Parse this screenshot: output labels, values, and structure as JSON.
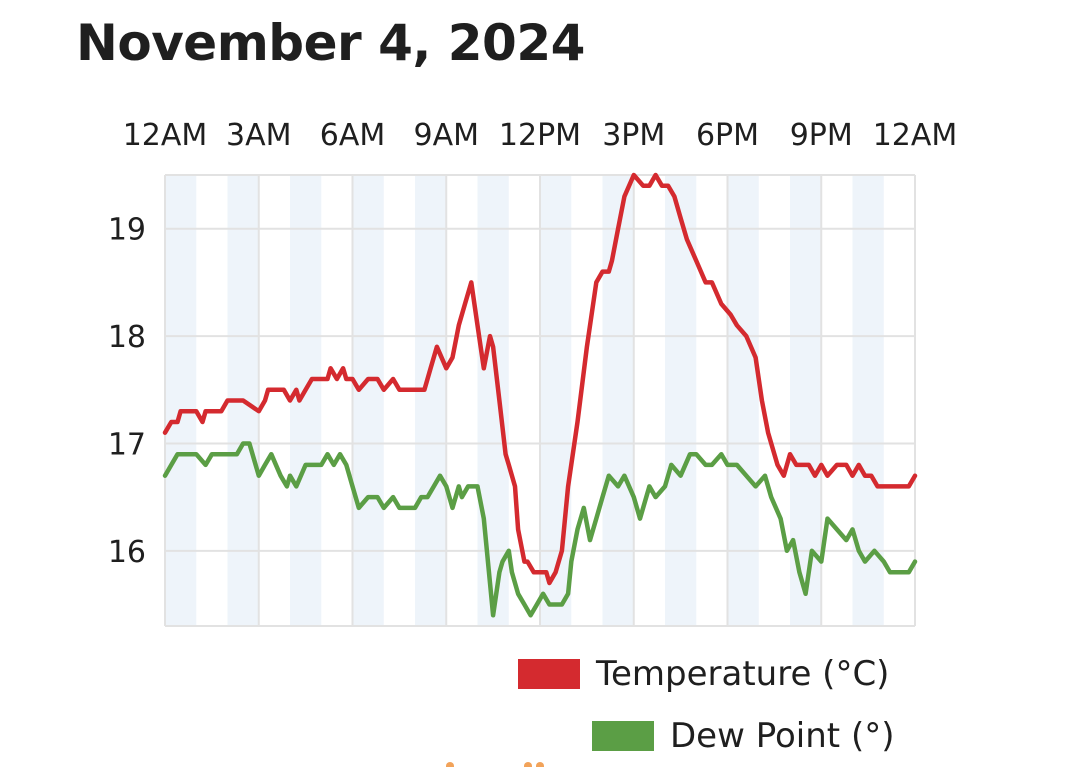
{
  "title": "November 4, 2024",
  "colors": {
    "temperature": "#d42a2f",
    "dew_point": "#5b9e45",
    "band": "#eef4fa",
    "grid": "#e2e2e2"
  },
  "chart_data": {
    "type": "line",
    "title": "November 4, 2024",
    "x_ticks": [
      "12AM",
      "3AM",
      "6AM",
      "9AM",
      "12PM",
      "3PM",
      "6PM",
      "9PM",
      "12AM"
    ],
    "x_range_hours": [
      0,
      24
    ],
    "y_ticks": [
      "16",
      "17",
      "18",
      "19"
    ],
    "ylim": [
      15.3,
      19.5
    ],
    "grid": true,
    "legend_position": "bottom-right",
    "series": [
      {
        "name": "Temperature (°C)",
        "color": "#d42a2f",
        "hours": [
          0,
          0.2,
          0.4,
          0.5,
          0.8,
          1.0,
          1.2,
          1.3,
          1.5,
          1.8,
          2.0,
          2.3,
          2.5,
          3.0,
          3.2,
          3.3,
          3.5,
          3.8,
          4.0,
          4.2,
          4.3,
          4.5,
          4.7,
          5.0,
          5.2,
          5.3,
          5.5,
          5.7,
          5.8,
          6.0,
          6.2,
          6.5,
          6.8,
          7.0,
          7.3,
          7.5,
          7.7,
          8.0,
          8.3,
          8.5,
          8.7,
          9.0,
          9.2,
          9.4,
          9.6,
          9.8,
          9.9,
          10.0,
          10.2,
          10.4,
          10.5,
          10.7,
          10.9,
          11.0,
          11.2,
          11.3,
          11.5,
          11.6,
          11.8,
          12.0,
          12.2,
          12.3,
          12.5,
          12.7,
          12.8,
          12.9,
          13.2,
          13.5,
          13.8,
          14.0,
          14.2,
          14.3,
          14.5,
          14.7,
          15.0,
          15.3,
          15.5,
          15.7,
          15.9,
          16.1,
          16.3,
          16.5,
          16.7,
          17.0,
          17.3,
          17.5,
          17.8,
          18.1,
          18.3,
          18.6,
          18.9,
          19.1,
          19.3,
          19.6,
          19.8,
          20.0,
          20.2,
          20.4,
          20.6,
          20.8,
          21.0,
          21.2,
          21.5,
          21.8,
          22.0,
          22.2,
          22.4,
          22.6,
          22.8,
          23.0,
          23.2,
          23.5,
          23.8,
          24.0
        ],
        "values": [
          17.1,
          17.2,
          17.2,
          17.3,
          17.3,
          17.3,
          17.2,
          17.3,
          17.3,
          17.3,
          17.4,
          17.4,
          17.4,
          17.3,
          17.4,
          17.5,
          17.5,
          17.5,
          17.4,
          17.5,
          17.4,
          17.5,
          17.6,
          17.6,
          17.6,
          17.7,
          17.6,
          17.7,
          17.6,
          17.6,
          17.5,
          17.6,
          17.6,
          17.5,
          17.6,
          17.5,
          17.5,
          17.5,
          17.5,
          17.7,
          17.9,
          17.7,
          17.8,
          18.1,
          18.3,
          18.5,
          18.3,
          18.1,
          17.7,
          18.0,
          17.9,
          17.4,
          16.9,
          16.8,
          16.6,
          16.2,
          15.9,
          15.9,
          15.8,
          15.8,
          15.8,
          15.7,
          15.8,
          16.0,
          16.3,
          16.6,
          17.2,
          17.9,
          18.5,
          18.6,
          18.6,
          18.7,
          19.0,
          19.3,
          19.5,
          19.4,
          19.4,
          19.5,
          19.4,
          19.4,
          19.3,
          19.1,
          18.9,
          18.7,
          18.5,
          18.5,
          18.3,
          18.2,
          18.1,
          18.0,
          17.8,
          17.4,
          17.1,
          16.8,
          16.7,
          16.9,
          16.8,
          16.8,
          16.8,
          16.7,
          16.8,
          16.7,
          16.8,
          16.8,
          16.7,
          16.8,
          16.7,
          16.7,
          16.6,
          16.6,
          16.6,
          16.6,
          16.6,
          16.7
        ]
      },
      {
        "name": "Dew Point (°)",
        "color": "#5b9e45",
        "hours": [
          0,
          0.2,
          0.4,
          0.6,
          1.0,
          1.3,
          1.5,
          2.0,
          2.3,
          2.5,
          2.7,
          3.0,
          3.2,
          3.4,
          3.7,
          3.9,
          4.0,
          4.2,
          4.5,
          4.7,
          5.0,
          5.2,
          5.4,
          5.6,
          5.8,
          6.0,
          6.2,
          6.5,
          6.8,
          7.0,
          7.3,
          7.5,
          7.7,
          8.0,
          8.2,
          8.4,
          8.6,
          8.8,
          9.0,
          9.2,
          9.4,
          9.5,
          9.7,
          10.0,
          10.2,
          10.4,
          10.5,
          10.7,
          10.8,
          11.0,
          11.1,
          11.3,
          11.5,
          11.7,
          11.9,
          12.1,
          12.3,
          12.5,
          12.7,
          12.9,
          13.0,
          13.2,
          13.4,
          13.6,
          13.8,
          14.0,
          14.2,
          14.5,
          14.7,
          15.0,
          15.2,
          15.5,
          15.7,
          16.0,
          16.2,
          16.5,
          16.8,
          17.0,
          17.3,
          17.5,
          17.8,
          18.0,
          18.3,
          18.6,
          18.9,
          19.2,
          19.4,
          19.7,
          19.9,
          20.1,
          20.3,
          20.5,
          20.7,
          21.0,
          21.2,
          21.5,
          21.8,
          22.0,
          22.2,
          22.4,
          22.7,
          23.0,
          23.2,
          23.5,
          23.8,
          24.0
        ],
        "values": [
          16.7,
          16.8,
          16.9,
          16.9,
          16.9,
          16.8,
          16.9,
          16.9,
          16.9,
          17.0,
          17.0,
          16.7,
          16.8,
          16.9,
          16.7,
          16.6,
          16.7,
          16.6,
          16.8,
          16.8,
          16.8,
          16.9,
          16.8,
          16.9,
          16.8,
          16.6,
          16.4,
          16.5,
          16.5,
          16.4,
          16.5,
          16.4,
          16.4,
          16.4,
          16.5,
          16.5,
          16.6,
          16.7,
          16.6,
          16.4,
          16.6,
          16.5,
          16.6,
          16.6,
          16.3,
          15.7,
          15.4,
          15.8,
          15.9,
          16.0,
          15.8,
          15.6,
          15.5,
          15.4,
          15.5,
          15.6,
          15.5,
          15.5,
          15.5,
          15.6,
          15.9,
          16.2,
          16.4,
          16.1,
          16.3,
          16.5,
          16.7,
          16.6,
          16.7,
          16.5,
          16.3,
          16.6,
          16.5,
          16.6,
          16.8,
          16.7,
          16.9,
          16.9,
          16.8,
          16.8,
          16.9,
          16.8,
          16.8,
          16.7,
          16.6,
          16.7,
          16.5,
          16.3,
          16.0,
          16.1,
          15.8,
          15.6,
          16.0,
          15.9,
          16.3,
          16.2,
          16.1,
          16.2,
          16.0,
          15.9,
          16.0,
          15.9,
          15.8,
          15.8,
          15.8,
          15.9
        ]
      }
    ]
  }
}
